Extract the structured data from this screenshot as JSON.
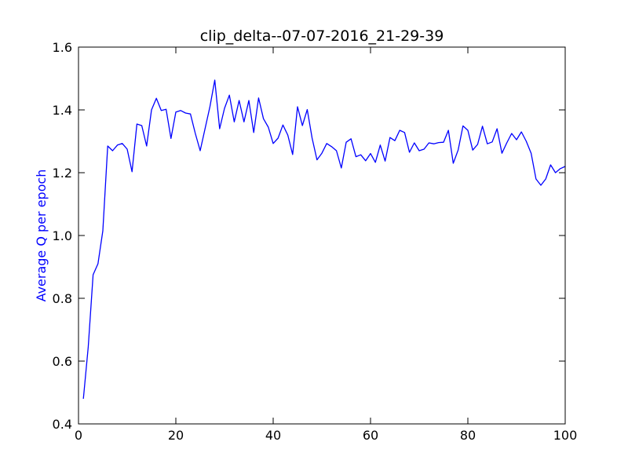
{
  "chart_data": {
    "type": "line",
    "title": "clip_delta--07-07-2016_21-29-39",
    "xlabel": "",
    "ylabel": "Average Q per epoch",
    "ylabel_color": "#0000ff",
    "line_color": "#0000ff",
    "xlim": [
      0,
      100
    ],
    "ylim": [
      0.4,
      1.6
    ],
    "grid": false,
    "x_ticks": [
      0,
      20,
      40,
      60,
      80,
      100
    ],
    "x_tick_labels": [
      "0",
      "20",
      "40",
      "60",
      "80",
      "100"
    ],
    "y_ticks": [
      0.4,
      0.6,
      0.8,
      1.0,
      1.2,
      1.4,
      1.6
    ],
    "y_tick_labels": [
      "0.4",
      "0.6",
      "0.8",
      "1.0",
      "1.2",
      "1.4",
      "1.6"
    ],
    "series": [
      {
        "x": [
          1,
          2,
          3,
          4,
          5,
          6,
          7,
          8,
          9,
          10,
          11,
          12,
          13,
          14,
          15,
          16,
          17,
          18,
          19,
          20,
          21,
          22,
          23,
          24,
          25,
          26,
          27,
          28,
          29,
          30,
          31,
          32,
          33,
          34,
          35,
          36,
          37,
          38,
          39,
          40,
          41,
          42,
          43,
          44,
          45,
          46,
          47,
          48,
          49,
          50,
          51,
          52,
          53,
          54,
          55,
          56,
          57,
          58,
          59,
          60,
          61,
          62,
          63,
          64,
          65,
          66,
          67,
          68,
          69,
          70,
          71,
          72,
          73,
          74,
          75,
          76,
          77,
          78,
          79,
          80,
          81,
          82,
          83,
          84,
          85,
          86,
          87,
          88,
          89,
          90,
          91,
          92,
          93,
          94,
          95,
          96,
          97,
          98,
          99,
          100
        ],
        "values": [
          0.48,
          0.645,
          0.875,
          0.91,
          1.015,
          1.285,
          1.27,
          1.288,
          1.293,
          1.275,
          1.203,
          1.355,
          1.35,
          1.285,
          1.4,
          1.437,
          1.398,
          1.402,
          1.309,
          1.393,
          1.398,
          1.39,
          1.387,
          1.325,
          1.27,
          1.34,
          1.41,
          1.495,
          1.34,
          1.405,
          1.447,
          1.362,
          1.43,
          1.362,
          1.43,
          1.328,
          1.438,
          1.372,
          1.345,
          1.293,
          1.31,
          1.352,
          1.32,
          1.258,
          1.41,
          1.35,
          1.401,
          1.31,
          1.241,
          1.262,
          1.293,
          1.283,
          1.27,
          1.215,
          1.297,
          1.308,
          1.251,
          1.257,
          1.238,
          1.261,
          1.233,
          1.288,
          1.237,
          1.312,
          1.302,
          1.335,
          1.328,
          1.265,
          1.295,
          1.27,
          1.275,
          1.295,
          1.292,
          1.296,
          1.297,
          1.335,
          1.23,
          1.272,
          1.349,
          1.335,
          1.272,
          1.29,
          1.348,
          1.292,
          1.298,
          1.34,
          1.262,
          1.295,
          1.325,
          1.305,
          1.33,
          1.3,
          1.262,
          1.18,
          1.16,
          1.18,
          1.225,
          1.2,
          1.213,
          1.22
        ]
      }
    ]
  }
}
